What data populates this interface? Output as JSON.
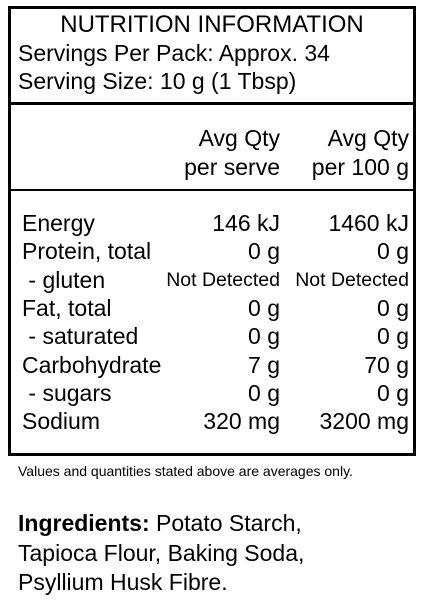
{
  "panel": {
    "title": "NUTRITION INFORMATION",
    "servings_per_pack": "Servings Per Pack: Approx. 34",
    "serving_size": "Serving Size: 10 g (1 Tbsp)",
    "columns": [
      [
        "Avg Qty",
        "per serve"
      ],
      [
        "Avg Qty",
        "per 100 g"
      ]
    ],
    "rows": [
      [
        "Energy",
        "146 kJ",
        "1460 kJ"
      ],
      [
        "Protein, total",
        "0 g",
        "0 g"
      ],
      [
        " - gluten",
        "Not Detected",
        "Not Detected"
      ],
      [
        "Fat, total",
        "0 g",
        "0 g"
      ],
      [
        " - saturated",
        "0 g",
        "0 g"
      ],
      [
        "Carbohydrate",
        "7 g",
        "70 g"
      ],
      [
        " - sugars",
        "0 g",
        "0 g"
      ],
      [
        "Sodium",
        "320 mg",
        "3200 mg"
      ]
    ]
  },
  "footnote": "Values and quantities stated above are averages only.",
  "ingredients": {
    "label": "Ingredients:",
    "lines": [
      "Potato Starch,",
      "Tapioca Flour, Baking Soda,",
      "Psyllium Husk Fibre."
    ]
  }
}
